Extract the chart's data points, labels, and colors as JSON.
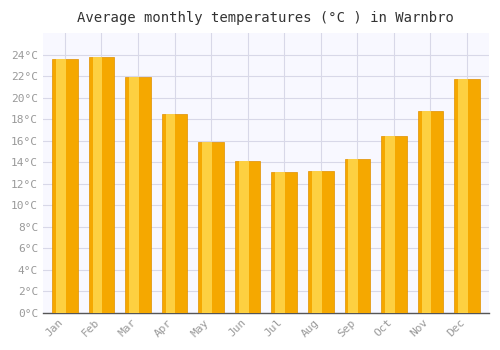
{
  "title": "Average monthly temperatures (°C ) in Warnbro",
  "months": [
    "Jan",
    "Feb",
    "Mar",
    "Apr",
    "May",
    "Jun",
    "Jul",
    "Aug",
    "Sep",
    "Oct",
    "Nov",
    "Dec"
  ],
  "values": [
    23.6,
    23.8,
    21.9,
    18.5,
    15.9,
    14.1,
    13.1,
    13.2,
    14.3,
    16.4,
    18.8,
    21.7
  ],
  "bar_color_bottom": "#F5A800",
  "bar_color_top": "#FFD84D",
  "bar_color_left_highlight": "#FFE070",
  "ylim": [
    0,
    26
  ],
  "yticks": [
    0,
    2,
    4,
    6,
    8,
    10,
    12,
    14,
    16,
    18,
    20,
    22,
    24
  ],
  "ytick_labels": [
    "0°C",
    "2°C",
    "4°C",
    "6°C",
    "8°C",
    "10°C",
    "12°C",
    "14°C",
    "16°C",
    "18°C",
    "20°C",
    "22°C",
    "24°C"
  ],
  "background_color": "#ffffff",
  "plot_bg_color": "#f8f8ff",
  "grid_color": "#d8d8e8",
  "title_fontsize": 10,
  "tick_fontsize": 8,
  "font_family": "monospace"
}
